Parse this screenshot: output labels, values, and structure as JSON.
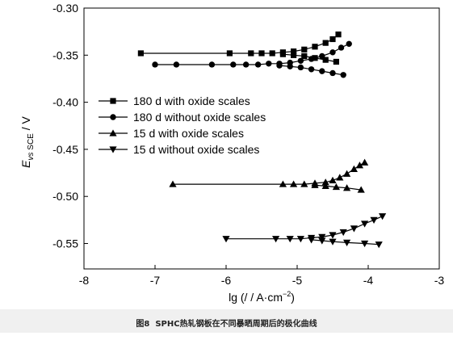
{
  "caption": "图8  SPHC热轧钢板在不同暴晒周期后的极化曲线",
  "colors": {
    "ink": "#000000",
    "caption_band": "#f0f0f0"
  },
  "chart_data": {
    "type": "line",
    "xlabel": {
      "text": "lg (/ / A·cm",
      "sup": "−2",
      "close": ")"
    },
    "ylabel": {
      "symbol": "E",
      "sub_italic": "vs",
      "sub": " SCE",
      "unit": " / V"
    },
    "xlim": [
      -8,
      -3
    ],
    "ylim": [
      -0.577,
      -0.3
    ],
    "xticks": [
      -8,
      -7,
      -6,
      -5,
      -4,
      -3
    ],
    "xtick_labels": [
      "-8",
      "-7",
      "-6",
      "-5",
      "-4",
      "-3"
    ],
    "yticks": [
      -0.3,
      -0.35,
      -0.4,
      -0.45,
      -0.5,
      -0.55
    ],
    "ytick_labels": [
      "-0.30",
      "-0.35",
      "-0.40",
      "-0.45",
      "-0.50",
      "-0.55"
    ],
    "grid": false,
    "legend": "center-left",
    "series": [
      {
        "name": "180 d with oxide scales",
        "marker": "square",
        "branches": [
          [
            [
              -7.2,
              -0.348
            ],
            [
              -5.95,
              -0.348
            ],
            [
              -5.65,
              -0.348
            ],
            [
              -5.5,
              -0.348
            ],
            [
              -5.35,
              -0.348
            ],
            [
              -5.2,
              -0.347
            ],
            [
              -5.05,
              -0.346
            ],
            [
              -4.9,
              -0.344
            ],
            [
              -4.75,
              -0.341
            ],
            [
              -4.6,
              -0.337
            ],
            [
              -4.5,
              -0.333
            ],
            [
              -4.42,
              -0.328
            ]
          ],
          [
            [
              -5.2,
              -0.349
            ],
            [
              -5.05,
              -0.35
            ],
            [
              -4.9,
              -0.351
            ],
            [
              -4.75,
              -0.353
            ],
            [
              -4.6,
              -0.355
            ],
            [
              -4.45,
              -0.357
            ]
          ]
        ]
      },
      {
        "name": "180 d without oxide scales",
        "marker": "circle",
        "branches": [
          [
            [
              -7.0,
              -0.36
            ],
            [
              -6.7,
              -0.36
            ],
            [
              -6.2,
              -0.36
            ],
            [
              -5.9,
              -0.36
            ],
            [
              -5.72,
              -0.36
            ],
            [
              -5.55,
              -0.36
            ],
            [
              -5.4,
              -0.359
            ],
            [
              -5.25,
              -0.359
            ],
            [
              -5.1,
              -0.358
            ],
            [
              -4.95,
              -0.356
            ],
            [
              -4.8,
              -0.354
            ],
            [
              -4.65,
              -0.351
            ],
            [
              -4.5,
              -0.347
            ],
            [
              -4.38,
              -0.342
            ],
            [
              -4.27,
              -0.338
            ]
          ],
          [
            [
              -5.25,
              -0.361
            ],
            [
              -5.1,
              -0.362
            ],
            [
              -4.95,
              -0.363
            ],
            [
              -4.8,
              -0.365
            ],
            [
              -4.65,
              -0.367
            ],
            [
              -4.5,
              -0.369
            ],
            [
              -4.35,
              -0.371
            ]
          ]
        ]
      },
      {
        "name": "15 d with oxide scales",
        "marker": "triangle-up",
        "branches": [
          [
            [
              -6.75,
              -0.487
            ],
            [
              -5.2,
              -0.487
            ],
            [
              -5.05,
              -0.487
            ],
            [
              -4.9,
              -0.487
            ],
            [
              -4.75,
              -0.486
            ],
            [
              -4.6,
              -0.485
            ],
            [
              -4.5,
              -0.483
            ],
            [
              -4.4,
              -0.48
            ],
            [
              -4.3,
              -0.476
            ],
            [
              -4.2,
              -0.471
            ],
            [
              -4.12,
              -0.467
            ],
            [
              -4.05,
              -0.464
            ]
          ],
          [
            [
              -4.75,
              -0.488
            ],
            [
              -4.6,
              -0.489
            ],
            [
              -4.45,
              -0.49
            ],
            [
              -4.3,
              -0.491
            ],
            [
              -4.1,
              -0.493
            ]
          ]
        ]
      },
      {
        "name": "15 d without oxide scales",
        "marker": "triangle-down",
        "branches": [
          [
            [
              -6.0,
              -0.545
            ],
            [
              -5.3,
              -0.545
            ],
            [
              -5.1,
              -0.545
            ],
            [
              -4.95,
              -0.545
            ],
            [
              -4.8,
              -0.544
            ],
            [
              -4.65,
              -0.543
            ],
            [
              -4.5,
              -0.541
            ],
            [
              -4.35,
              -0.538
            ],
            [
              -4.2,
              -0.534
            ],
            [
              -4.05,
              -0.529
            ],
            [
              -3.92,
              -0.525
            ],
            [
              -3.8,
              -0.521
            ]
          ],
          [
            [
              -4.8,
              -0.546
            ],
            [
              -4.65,
              -0.547
            ],
            [
              -4.5,
              -0.548
            ],
            [
              -4.3,
              -0.549
            ],
            [
              -4.05,
              -0.55
            ],
            [
              -3.85,
              -0.551
            ]
          ]
        ]
      }
    ]
  }
}
